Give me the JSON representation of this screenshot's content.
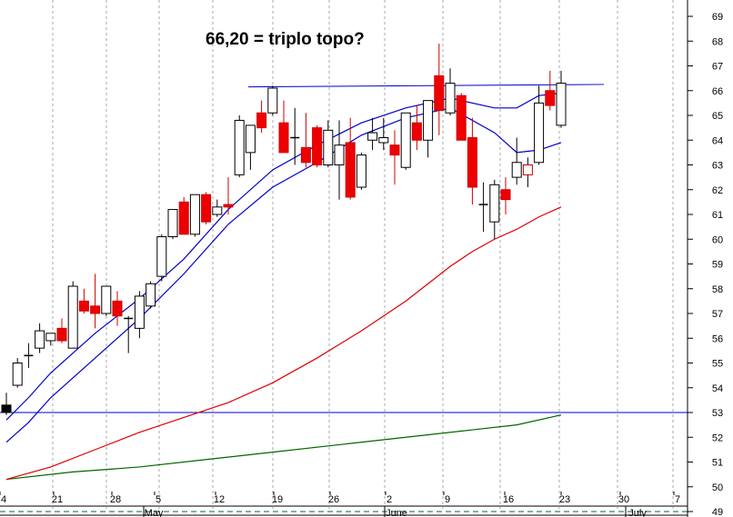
{
  "chart_data": {
    "type": "candlestick",
    "title": "66,20 = triplo topo?",
    "ylim": [
      48.6,
      70
    ],
    "y_ticks": [
      "49",
      "50",
      "51",
      "52",
      "53",
      "54",
      "55",
      "56",
      "57",
      "58",
      "59",
      "60",
      "61",
      "62",
      "63",
      "64",
      "65",
      "66",
      "67",
      "68",
      "69"
    ],
    "x_tick_labels": [
      "4",
      "21",
      "28",
      "5",
      "12",
      "19",
      "26",
      "2",
      "9",
      "16",
      "23",
      "30",
      "7"
    ],
    "month_labels": [
      "May",
      "June",
      "July"
    ],
    "grid": "vertical dotted",
    "candles": [
      {
        "date": "Apr 17",
        "open": 53.3,
        "high": 53.8,
        "low": 52.9,
        "close": 53.0,
        "color": "black"
      },
      {
        "date": "Apr 18",
        "open": 54.1,
        "high": 55.2,
        "low": 54.0,
        "close": 55.0,
        "color": "white"
      },
      {
        "date": "Apr 19",
        "open": 55.3,
        "high": 55.8,
        "low": 54.8,
        "close": 55.3,
        "color": "doji"
      },
      {
        "date": "Apr 20",
        "open": 55.6,
        "high": 56.6,
        "low": 55.4,
        "close": 56.3,
        "color": "white"
      },
      {
        "date": "Apr 21",
        "open": 55.9,
        "high": 56.2,
        "low": 55.7,
        "close": 56.2,
        "color": "white"
      },
      {
        "date": "Apr 24",
        "open": 56.4,
        "high": 56.8,
        "low": 55.8,
        "close": 55.9,
        "color": "red"
      },
      {
        "date": "Apr 25",
        "open": 55.6,
        "high": 58.3,
        "low": 55.6,
        "close": 58.1,
        "color": "white"
      },
      {
        "date": "Apr 26",
        "open": 57.5,
        "high": 58.0,
        "low": 57.0,
        "close": 57.1,
        "color": "red"
      },
      {
        "date": "Apr 27",
        "open": 57.3,
        "high": 58.6,
        "low": 56.4,
        "close": 57.0,
        "color": "red"
      },
      {
        "date": "Apr 28",
        "open": 57.0,
        "high": 58.1,
        "low": 56.9,
        "close": 58.1,
        "color": "white"
      },
      {
        "date": "May 1",
        "open": 57.5,
        "high": 57.9,
        "low": 56.5,
        "close": 56.9,
        "color": "red"
      },
      {
        "date": "May 2",
        "open": 56.8,
        "high": 56.9,
        "low": 55.4,
        "close": 56.8,
        "color": "doji"
      },
      {
        "date": "May 3",
        "open": 56.4,
        "high": 57.9,
        "low": 56.0,
        "close": 57.7,
        "color": "white"
      },
      {
        "date": "May 4",
        "open": 57.3,
        "high": 58.3,
        "low": 57.2,
        "close": 58.2,
        "color": "white"
      },
      {
        "date": "May 5",
        "open": 58.5,
        "high": 60.2,
        "low": 58.3,
        "close": 60.1,
        "color": "white"
      },
      {
        "date": "May 8",
        "open": 60.1,
        "high": 61.2,
        "low": 60.0,
        "close": 61.2,
        "color": "white"
      },
      {
        "date": "May 9",
        "open": 61.5,
        "high": 61.7,
        "low": 60.2,
        "close": 60.2,
        "color": "red"
      },
      {
        "date": "May 10",
        "open": 60.2,
        "high": 61.8,
        "low": 60.1,
        "close": 61.8,
        "color": "white"
      },
      {
        "date": "May 11",
        "open": 61.8,
        "high": 61.9,
        "low": 60.6,
        "close": 60.7,
        "color": "red"
      },
      {
        "date": "May 12",
        "open": 61.0,
        "high": 61.6,
        "low": 60.9,
        "close": 61.3,
        "color": "white"
      },
      {
        "date": "May 15",
        "open": 61.3,
        "high": 62.5,
        "low": 61.0,
        "close": 61.4,
        "color": "red"
      },
      {
        "date": "May 16",
        "open": 62.6,
        "high": 65.0,
        "low": 62.5,
        "close": 64.8,
        "color": "white"
      },
      {
        "date": "May 17",
        "open": 63.5,
        "high": 64.6,
        "low": 62.8,
        "close": 64.6,
        "color": "white"
      },
      {
        "date": "May 18",
        "open": 65.1,
        "high": 65.6,
        "low": 64.3,
        "close": 64.5,
        "color": "red"
      },
      {
        "date": "May 19",
        "open": 65.1,
        "high": 66.2,
        "low": 65.0,
        "close": 66.1,
        "color": "white"
      },
      {
        "date": "May 22",
        "open": 64.7,
        "high": 65.6,
        "low": 63.5,
        "close": 63.5,
        "color": "red"
      },
      {
        "date": "May 23",
        "open": 64.1,
        "high": 65.3,
        "low": 63.0,
        "close": 64.1,
        "color": "doji"
      },
      {
        "date": "May 24",
        "open": 63.7,
        "high": 65.1,
        "low": 62.9,
        "close": 63.1,
        "color": "red"
      },
      {
        "date": "May 25",
        "open": 64.5,
        "high": 64.6,
        "low": 62.9,
        "close": 63.0,
        "color": "red"
      },
      {
        "date": "May 26",
        "open": 64.4,
        "high": 64.8,
        "low": 62.9,
        "close": 63.0,
        "color": "white"
      },
      {
        "date": "May 29",
        "open": 63.0,
        "high": 64.8,
        "low": 61.6,
        "close": 63.8,
        "color": "white"
      },
      {
        "date": "May 30",
        "open": 63.9,
        "high": 64.9,
        "low": 61.6,
        "close": 61.7,
        "color": "red"
      },
      {
        "date": "May 31",
        "open": 62.1,
        "high": 63.5,
        "low": 62.0,
        "close": 63.4,
        "color": "white"
      },
      {
        "date": "Jun 1",
        "open": 64.0,
        "high": 64.9,
        "low": 63.6,
        "close": 64.3,
        "color": "white"
      },
      {
        "date": "Jun 2",
        "open": 64.1,
        "high": 64.9,
        "low": 63.6,
        "close": 63.9,
        "color": "white"
      },
      {
        "date": "Jun 5",
        "open": 63.8,
        "high": 64.4,
        "low": 62.2,
        "close": 63.4,
        "color": "red"
      },
      {
        "date": "Jun 6",
        "open": 62.9,
        "high": 65.1,
        "low": 62.8,
        "close": 65.1,
        "color": "white"
      },
      {
        "date": "Jun 7",
        "open": 64.7,
        "high": 65.4,
        "low": 63.6,
        "close": 64.0,
        "color": "red"
      },
      {
        "date": "Jun 8",
        "open": 64.0,
        "high": 65.6,
        "low": 63.3,
        "close": 65.6,
        "color": "white"
      },
      {
        "date": "Jun 9",
        "open": 66.6,
        "high": 67.9,
        "low": 64.2,
        "close": 65.2,
        "color": "red"
      },
      {
        "date": "Jun 12",
        "open": 65.1,
        "high": 66.9,
        "low": 65.0,
        "close": 66.3,
        "color": "white"
      },
      {
        "date": "Jun 13",
        "open": 65.8,
        "high": 65.9,
        "low": 64.0,
        "close": 64.0,
        "color": "red"
      },
      {
        "date": "Jun 14",
        "open": 64.1,
        "high": 64.9,
        "low": 61.4,
        "close": 62.1,
        "color": "red"
      },
      {
        "date": "Jun 15",
        "open": 61.4,
        "high": 62.3,
        "low": 60.3,
        "close": 61.4,
        "color": "doji"
      },
      {
        "date": "Jun 16",
        "open": 60.7,
        "high": 62.4,
        "low": 60.0,
        "close": 62.2,
        "color": "white"
      },
      {
        "date": "Jun 19",
        "open": 62.0,
        "high": 62.5,
        "low": 61.0,
        "close": 61.6,
        "color": "red"
      },
      {
        "date": "Jun 20",
        "open": 62.5,
        "high": 64.1,
        "low": 62.2,
        "close": 63.1,
        "color": "white"
      },
      {
        "date": "Jun 21",
        "open": 62.6,
        "high": 63.3,
        "low": 62.1,
        "close": 63.0,
        "color": "redoutline"
      },
      {
        "date": "Jun 22",
        "open": 63.1,
        "high": 66.2,
        "low": 63.0,
        "close": 65.5,
        "color": "white"
      },
      {
        "date": "Jun 23",
        "open": 66.0,
        "high": 66.8,
        "low": 65.2,
        "close": 65.4,
        "color": "red"
      },
      {
        "date": "Jun 26",
        "open": 64.6,
        "high": 66.8,
        "low": 64.5,
        "close": 66.3,
        "color": "white"
      }
    ],
    "ma_short": {
      "color": "#0000cc",
      "points": [
        [
          0,
          52.7
        ],
        [
          2,
          53.6
        ],
        [
          4,
          54.6
        ],
        [
          8,
          56.2
        ],
        [
          12,
          57.6
        ],
        [
          16,
          59.2
        ],
        [
          20,
          61.2
        ],
        [
          24,
          62.8
        ],
        [
          28,
          63.8
        ],
        [
          32,
          64.7
        ],
        [
          36,
          65.3
        ],
        [
          40,
          65.7
        ],
        [
          44,
          65.3
        ],
        [
          46,
          65.3
        ],
        [
          48,
          65.8
        ],
        [
          50,
          65.9
        ]
      ]
    },
    "ma_short2": {
      "color": "#0000cc",
      "points": [
        [
          0,
          51.8
        ],
        [
          2,
          52.6
        ],
        [
          4,
          53.6
        ],
        [
          8,
          55.2
        ],
        [
          12,
          56.8
        ],
        [
          16,
          58.6
        ],
        [
          20,
          60.6
        ],
        [
          24,
          62.1
        ],
        [
          28,
          63.1
        ],
        [
          32,
          64.2
        ],
        [
          36,
          64.9
        ],
        [
          40,
          65.3
        ],
        [
          44,
          64.3
        ],
        [
          46,
          63.5
        ],
        [
          48,
          63.6
        ],
        [
          50,
          63.9
        ]
      ]
    },
    "ma_mid": {
      "color": "#dd0000",
      "points": [
        [
          0,
          50.3
        ],
        [
          4,
          50.8
        ],
        [
          8,
          51.5
        ],
        [
          12,
          52.2
        ],
        [
          16,
          52.8
        ],
        [
          20,
          53.4
        ],
        [
          24,
          54.2
        ],
        [
          28,
          55.2
        ],
        [
          32,
          56.3
        ],
        [
          36,
          57.5
        ],
        [
          40,
          58.9
        ],
        [
          42,
          59.5
        ],
        [
          44,
          60.0
        ],
        [
          46,
          60.4
        ],
        [
          48,
          60.9
        ],
        [
          50,
          61.3
        ]
      ]
    },
    "ma_long": {
      "color": "#006600",
      "points": [
        [
          0,
          50.3
        ],
        [
          6,
          50.6
        ],
        [
          12,
          50.8
        ],
        [
          18,
          51.1
        ],
        [
          24,
          51.4
        ],
        [
          30,
          51.7
        ],
        [
          36,
          52.0
        ],
        [
          42,
          52.3
        ],
        [
          46,
          52.5
        ],
        [
          50,
          52.9
        ]
      ]
    },
    "resistance_line": {
      "value": 66.2,
      "color": "#0000cc"
    },
    "support_line": {
      "value": 53.0,
      "color": "#0000cc"
    },
    "baseline_dashed": {
      "value": 49.0,
      "color": "#006644"
    }
  }
}
